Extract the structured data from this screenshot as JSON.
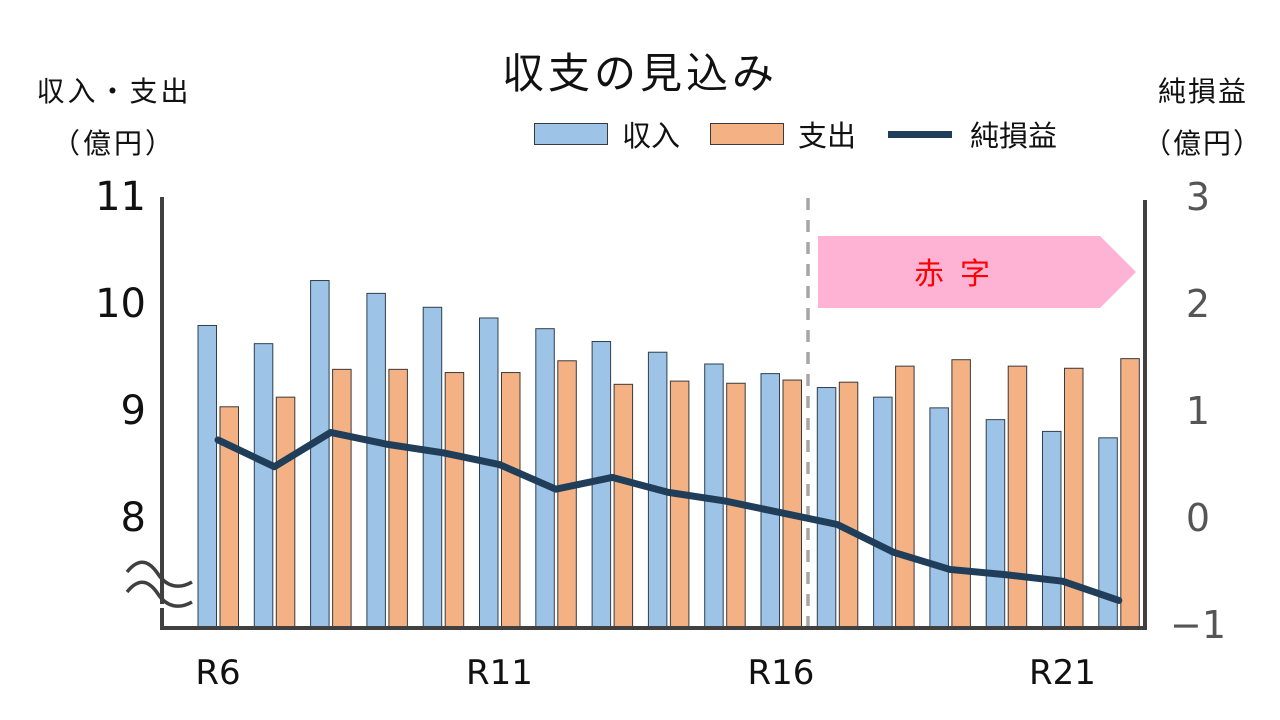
{
  "title": "収支の見込み",
  "left_axis_label": {
    "line1": "収入・支出",
    "line2": "（億円）"
  },
  "right_axis_label": {
    "line1": "純損益",
    "line2": "（億円）"
  },
  "legend": [
    {
      "label": "収入",
      "kind": "bar",
      "color": "#9dc3e6"
    },
    {
      "label": "支出",
      "kind": "bar",
      "color": "#f4b183"
    },
    {
      "label": "純損益",
      "kind": "line",
      "color": "#203e5a"
    }
  ],
  "annotation": {
    "label": "赤字",
    "fill": "#ffb3d4",
    "text_color": "#ff0000",
    "starts_after": "R16"
  },
  "colors": {
    "revenue": "#9dc3e6",
    "expense": "#f4b183",
    "net": "#203e5a",
    "axis": "#404040",
    "divider": "#a6a6a6"
  },
  "chart_data": {
    "type": "bar",
    "title": "収支の見込み",
    "xlabel": "",
    "ylabel": "収入・支出（億円）",
    "y2label": "純損益（億円）",
    "categories": [
      "R6",
      "R7",
      "R8",
      "R9",
      "R10",
      "R11",
      "R12",
      "R13",
      "R14",
      "R15",
      "R16",
      "R17",
      "R18",
      "R19",
      "R20",
      "R21",
      "R22"
    ],
    "x_tick_labels": [
      {
        "index": 0,
        "label": "R6"
      },
      {
        "index": 5,
        "label": "R11"
      },
      {
        "index": 10,
        "label": "R16"
      },
      {
        "index": 15,
        "label": "R21"
      }
    ],
    "series": [
      {
        "name": "収入",
        "type": "bar",
        "axis": "left",
        "values": [
          9.79,
          9.62,
          10.21,
          10.09,
          9.96,
          9.86,
          9.76,
          9.64,
          9.54,
          9.43,
          9.34,
          9.21,
          9.12,
          9.02,
          8.91,
          8.8,
          8.74
        ]
      },
      {
        "name": "支出",
        "type": "bar",
        "axis": "left",
        "values": [
          9.03,
          9.12,
          9.38,
          9.38,
          9.35,
          9.35,
          9.46,
          9.24,
          9.27,
          9.25,
          9.28,
          9.26,
          9.41,
          9.47,
          9.41,
          9.39,
          9.48
        ]
      },
      {
        "name": "純損益",
        "type": "line",
        "axis": "right",
        "values": [
          0.72,
          0.47,
          0.79,
          0.68,
          0.6,
          0.49,
          0.26,
          0.37,
          0.23,
          0.15,
          0.04,
          -0.07,
          -0.33,
          -0.49,
          -0.54,
          -0.6,
          -0.78
        ]
      }
    ],
    "ylim": [
      7,
      11
    ],
    "y_ticks": [
      8,
      9,
      10,
      11
    ],
    "y_axis_break": true,
    "y2lim": [
      -1,
      3
    ],
    "y2_ticks": [
      -1,
      0,
      1,
      2,
      3
    ],
    "grid": false,
    "legend_position": "top-right",
    "divider_after_index": 10,
    "deficit_region_label": "赤字"
  }
}
